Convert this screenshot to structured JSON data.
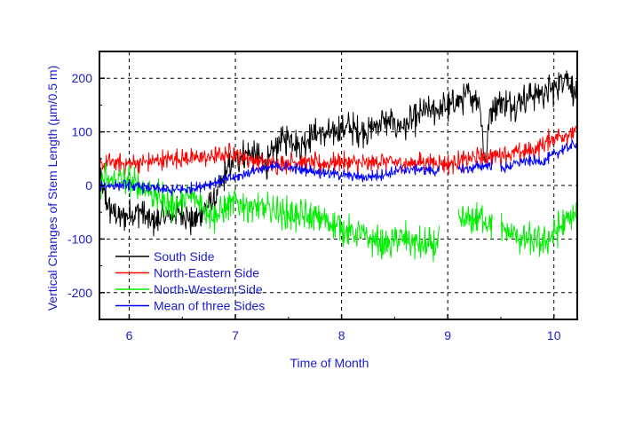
{
  "chart_data": {
    "type": "line",
    "title": "",
    "xlabel": "Time of Month",
    "ylabel": "Vertical Changes of Stem Length (µm/0.5 m)",
    "xlim": [
      5.72,
      10.22
    ],
    "ylim": [
      -250,
      250
    ],
    "x_ticks": [
      6,
      7,
      8,
      9,
      10
    ],
    "y_ticks": [
      -200,
      -100,
      0,
      100,
      200
    ],
    "grid": true,
    "legend_position": "bottom-left",
    "colors": {
      "axis_text": "#1c1ccc",
      "frame": "#000000",
      "grid": "#000000"
    },
    "series": [
      {
        "name": "South Side",
        "color": "#000000",
        "noise": 22,
        "gaps": [],
        "x": [
          5.72,
          5.8,
          5.9,
          6.0,
          6.1,
          6.2,
          6.3,
          6.4,
          6.5,
          6.6,
          6.7,
          6.8,
          6.9,
          7.0,
          7.1,
          7.2,
          7.3,
          7.4,
          7.5,
          7.6,
          7.7,
          7.8,
          7.9,
          8.0,
          8.2,
          8.4,
          8.6,
          8.8,
          9.0,
          9.2,
          9.3,
          9.35,
          9.4,
          9.5,
          9.6,
          9.8,
          10.0,
          10.1,
          10.2
        ],
        "y": [
          10,
          -40,
          -60,
          -55,
          -45,
          -70,
          -65,
          -55,
          -50,
          -70,
          -45,
          -30,
          20,
          50,
          60,
          55,
          40,
          80,
          90,
          75,
          90,
          100,
          95,
          110,
          100,
          120,
          110,
          140,
          145,
          170,
          160,
          40,
          140,
          160,
          150,
          170,
          180,
          210,
          170
        ]
      },
      {
        "name": "North-Eastern Side",
        "color": "#ff0000",
        "noise": 14,
        "gaps": [],
        "x": [
          5.72,
          5.8,
          6.0,
          6.2,
          6.4,
          6.6,
          6.8,
          7.0,
          7.2,
          7.4,
          7.6,
          7.8,
          8.0,
          8.2,
          8.4,
          8.6,
          8.8,
          9.0,
          9.2,
          9.4,
          9.6,
          9.8,
          10.0,
          10.2
        ],
        "y": [
          30,
          45,
          40,
          45,
          50,
          50,
          55,
          60,
          45,
          40,
          45,
          40,
          45,
          40,
          45,
          40,
          45,
          40,
          50,
          55,
          60,
          65,
          90,
          100
        ]
      },
      {
        "name": "North-Western Side",
        "color": "#00ee00",
        "noise": 24,
        "gaps": [
          [
            8.92,
            9.1
          ],
          [
            9.42,
            9.5
          ]
        ],
        "x": [
          5.72,
          6.0,
          6.2,
          6.4,
          6.6,
          6.8,
          7.0,
          7.2,
          7.4,
          7.6,
          7.8,
          8.0,
          8.2,
          8.4,
          8.6,
          8.8,
          8.92,
          9.1,
          9.3,
          9.42,
          9.5,
          9.7,
          9.9,
          10.1,
          10.2
        ],
        "y": [
          10,
          5,
          -10,
          -40,
          -20,
          -60,
          -30,
          -40,
          -50,
          -60,
          -60,
          -80,
          -95,
          -110,
          -100,
          -115,
          -110,
          -70,
          -60,
          -70,
          -80,
          -100,
          -110,
          -70,
          -55
        ]
      },
      {
        "name": "Mean of three Sides",
        "color": "#0000ff",
        "noise": 8,
        "gaps": [
          [
            8.92,
            9.1
          ],
          [
            9.42,
            9.5
          ]
        ],
        "x": [
          5.72,
          6.0,
          6.2,
          6.4,
          6.6,
          6.8,
          7.0,
          7.2,
          7.4,
          7.6,
          7.8,
          8.0,
          8.2,
          8.4,
          8.6,
          8.8,
          8.92,
          9.1,
          9.3,
          9.42,
          9.5,
          9.7,
          9.9,
          10.1,
          10.2
        ],
        "y": [
          0,
          0,
          -5,
          -10,
          -5,
          5,
          15,
          30,
          35,
          30,
          25,
          20,
          15,
          20,
          30,
          30,
          25,
          30,
          35,
          40,
          30,
          45,
          45,
          70,
          75
        ]
      }
    ]
  }
}
